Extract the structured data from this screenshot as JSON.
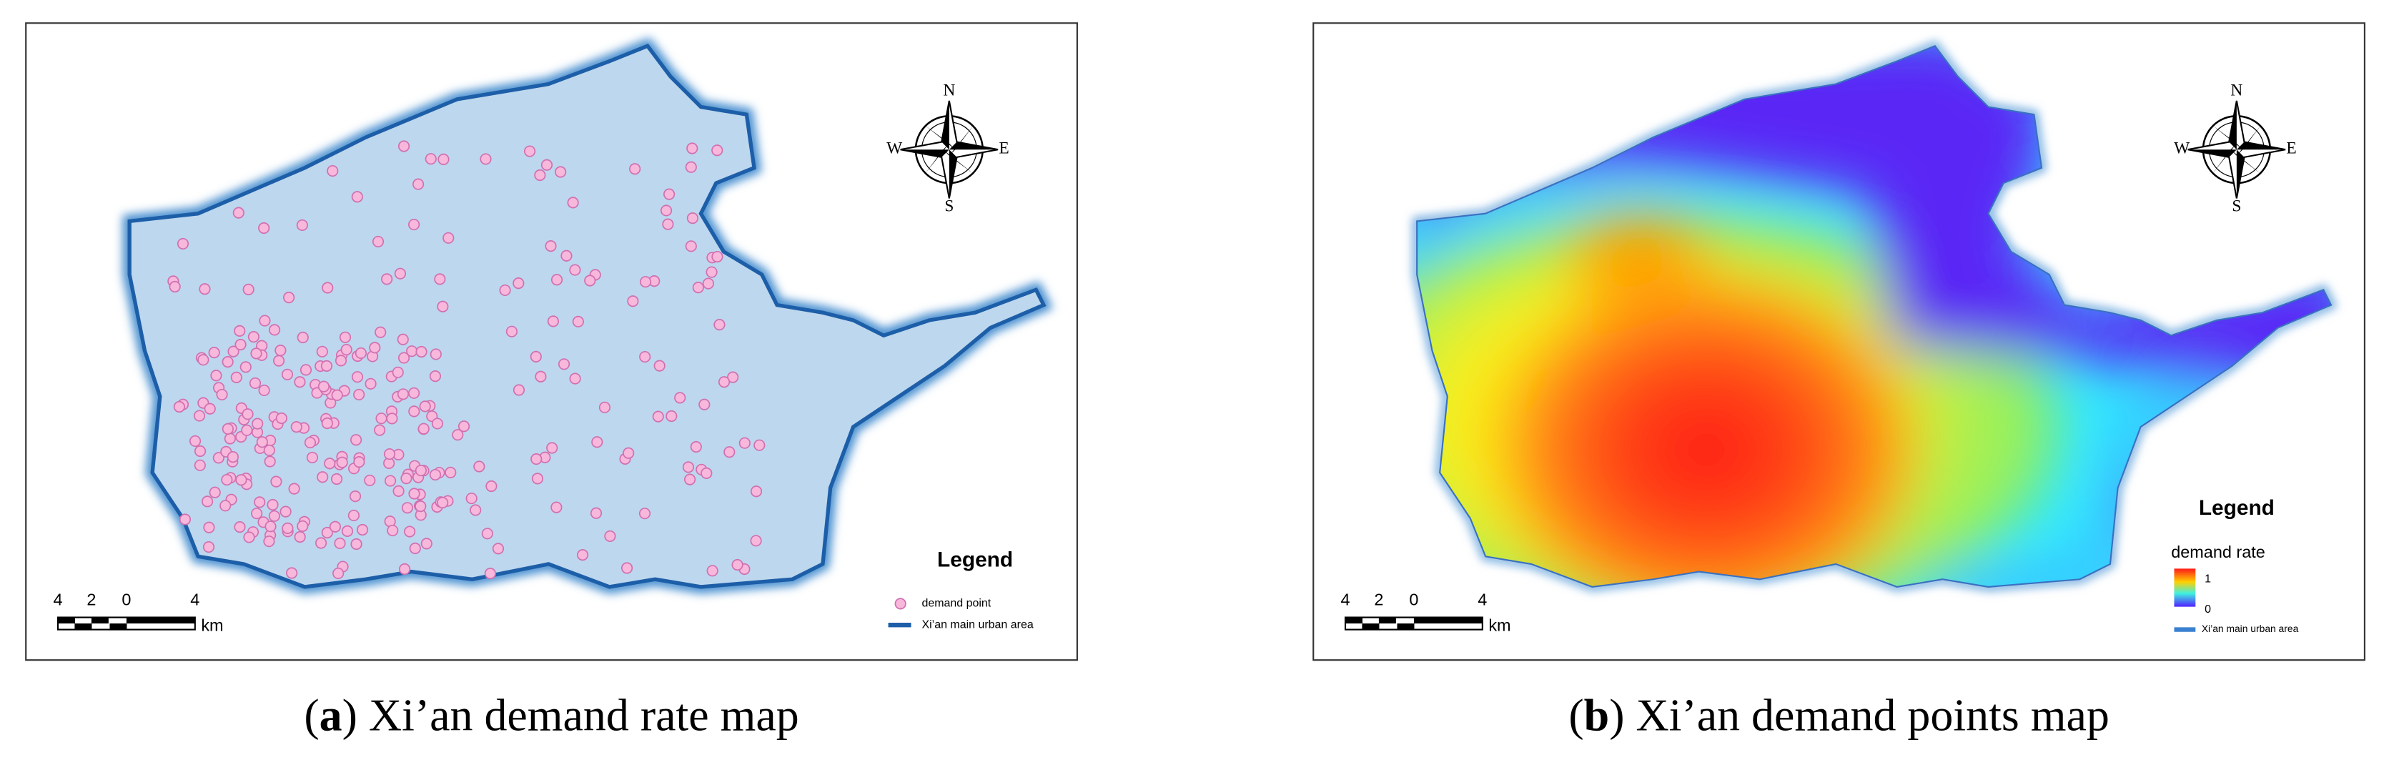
{
  "panels": [
    {
      "caption": {
        "open": "(",
        "label": "a",
        "text": ") Xi’an demand rate map"
      },
      "compass": {
        "n": "N",
        "e": "E",
        "s": "S",
        "w": "W"
      },
      "scale_bar": {
        "labels": [
          "4",
          "2",
          "0",
          "4"
        ],
        "unit": "km"
      },
      "legend": {
        "title": "Legend",
        "items": [
          "demand point",
          "Xi’an main urban area"
        ]
      }
    },
    {
      "caption": {
        "open": "(",
        "label": "b",
        "text": ") Xi’an demand points map"
      },
      "compass": {
        "n": "N",
        "e": "E",
        "s": "S",
        "w": "W"
      },
      "scale_bar": {
        "labels": [
          "4",
          "2",
          "0",
          "4"
        ],
        "unit": "km"
      },
      "legend": {
        "title": "Legend",
        "subtitle": "demand rate",
        "ramp_labels": [
          "1",
          "0"
        ],
        "items": [
          "Xi’an main urban area"
        ]
      }
    }
  ]
}
